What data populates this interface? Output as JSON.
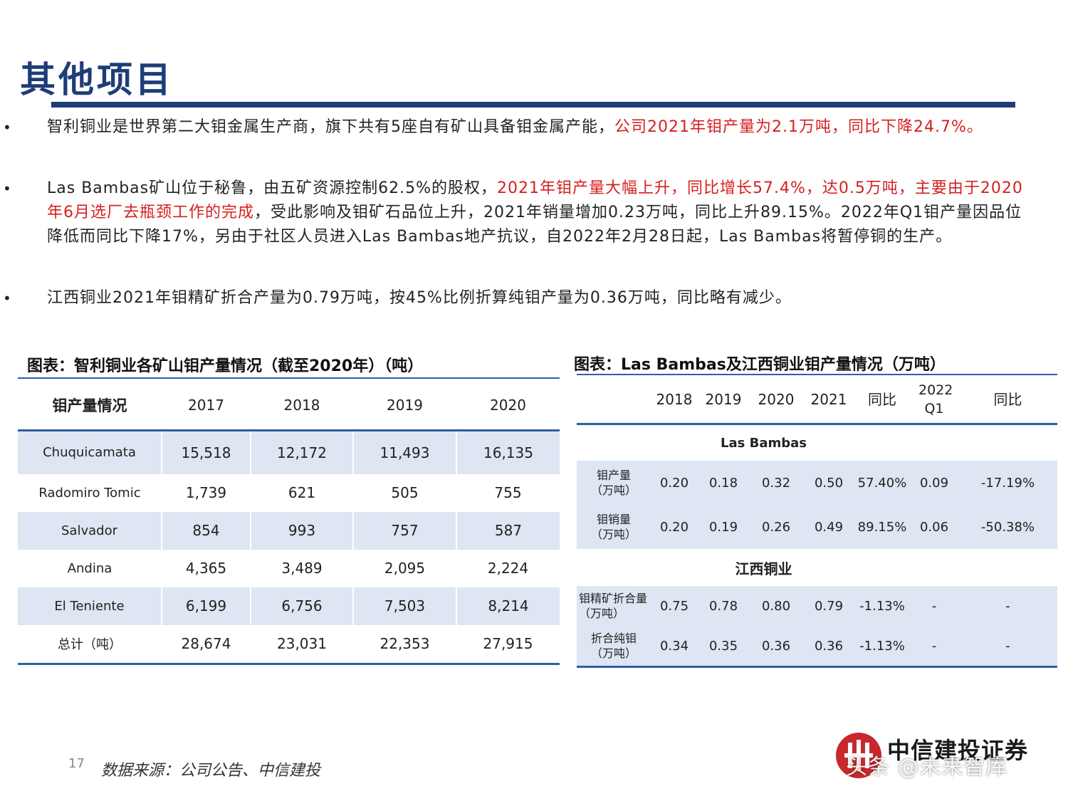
{
  "title": "其他项目",
  "bullets": [
    {
      "runs": [
        {
          "text": "智利铜业是世界第二大钼金属生产商，旗下共有5座自有矿山具备钼金属产能，",
          "red": false
        },
        {
          "text": "公司2021年钼产量为2.1万吨，同比下降24.7%。",
          "red": true
        }
      ]
    },
    {
      "runs": [
        {
          "text": "Las Bambas矿山位于秘鲁，由五矿资源控制62.5%的股权，",
          "red": false
        },
        {
          "text": "2021年钼产量大幅上升，同比增长57.4%，达0.5万吨，主要由于2020年6月选厂去瓶颈工作的完成",
          "red": true
        },
        {
          "text": "，受此影响及钼矿石品位上升，2021年销量增加0.23万吨，同比上升89.15%。2022年Q1钼产量因品位降低而同比下降17%，另由于社区人员进入Las Bambas地产抗议，自2022年2月28日起，Las Bambas将暂停铜的生产。",
          "red": false
        }
      ]
    },
    {
      "runs": [
        {
          "text": "江西铜业2021年钼精矿折合产量为0.79万吨，按45%比例折算纯钼产量为0.36万吨，同比略有减少。",
          "red": false
        }
      ]
    }
  ],
  "table1": {
    "title": "图表：智利铜业各矿山钼产量情况（截至2020年）（吨）",
    "header": [
      "钼产量情况",
      "2017",
      "2018",
      "2019",
      "2020"
    ],
    "rows": [
      [
        "Chuquicamata",
        "15,518",
        "12,172",
        "11,493",
        "16,135"
      ],
      [
        "Radomiro Tomic",
        "1,739",
        "621",
        "505",
        "755"
      ],
      [
        "Salvador",
        "854",
        "993",
        "757",
        "587"
      ],
      [
        "Andina",
        "4,365",
        "3,489",
        "2,095",
        "2,224"
      ],
      [
        "El Teniente",
        "6,199",
        "6,756",
        "7,503",
        "8,214"
      ],
      [
        "总计（吨）",
        "28,674",
        "23,031",
        "22,353",
        "27,915"
      ]
    ]
  },
  "table2": {
    "title": "图表：Las Bambas及江西铜业钼产量情况（万吨）",
    "header": [
      "",
      "2018",
      "2019",
      "2020",
      "2021",
      "同比",
      "2022 Q1",
      "同比"
    ],
    "sections": [
      {
        "name": "Las Bambas",
        "rows": [
          [
            "钼产量（万吨）",
            "0.20",
            "0.18",
            "0.32",
            "0.50",
            "57.40%",
            "0.09",
            "-17.19%"
          ],
          [
            "钼销量（万吨）",
            "0.20",
            "0.19",
            "0.26",
            "0.49",
            "89.15%",
            "0.06",
            "-50.38%"
          ]
        ]
      },
      {
        "name": "江西铜业",
        "rows": [
          [
            "钼精矿折合量（万吨）",
            "0.75",
            "0.78",
            "0.80",
            "0.79",
            "-1.13%",
            "-",
            "-"
          ],
          [
            "折合纯钼（万吨）",
            "0.34",
            "0.35",
            "0.36",
            "0.36",
            "-1.13%",
            "-",
            "-"
          ]
        ]
      }
    ]
  },
  "footer": {
    "page_number": "17",
    "source": "数据来源：公司公告、中信建投",
    "logo_text": "中信建投证券",
    "watermark": "头条 @未来智库"
  }
}
